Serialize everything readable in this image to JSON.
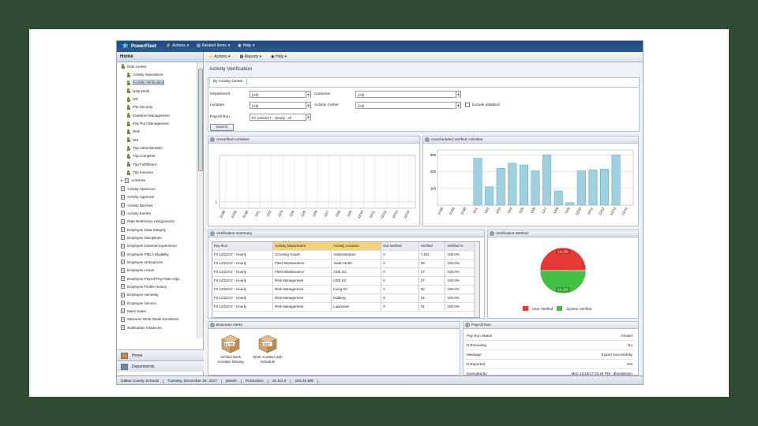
{
  "app": {
    "logo": "PowerFleet",
    "menu": [
      "Actions",
      "Related Items",
      "Help"
    ]
  },
  "sidebar": {
    "title": "Home",
    "items": [
      {
        "label": "Role Center",
        "icon": "person-icon",
        "indent": 0
      },
      {
        "label": "Activity Operations",
        "icon": "person-icon",
        "indent": 1
      },
      {
        "label": "Activity Verification",
        "icon": "person-icon",
        "indent": 1,
        "selected": true
      },
      {
        "label": "Help Desk",
        "icon": "person-icon",
        "indent": 1
      },
      {
        "label": "HR",
        "icon": "person-icon",
        "indent": 1
      },
      {
        "label": "PW Security",
        "icon": "person-icon",
        "indent": 1
      },
      {
        "label": "Overtime Management",
        "icon": "person-icon",
        "indent": 1
      },
      {
        "label": "Pay Run Management",
        "icon": "person-icon",
        "indent": 1
      },
      {
        "label": "Risk",
        "icon": "person-icon",
        "indent": 1
      },
      {
        "label": "SIS",
        "icon": "person-icon",
        "indent": 1
      },
      {
        "label": "Trip Administration",
        "icon": "person-icon",
        "indent": 1
      },
      {
        "label": "Trip Complete",
        "icon": "person-icon",
        "indent": 1
      },
      {
        "label": "Trip Fulfillment",
        "icon": "person-icon",
        "indent": 1
      },
      {
        "label": "Trip Invoices",
        "icon": "person-icon",
        "indent": 1
      },
      {
        "label": "Activities",
        "icon": "doc-icon",
        "indent": 0
      },
      {
        "label": "Activity Absences",
        "icon": "doc-icon",
        "indent": 0
      },
      {
        "label": "Activity Approval",
        "icon": "doc-icon",
        "indent": 0
      },
      {
        "label": "Activity Batches",
        "icon": "doc-icon",
        "indent": 0
      },
      {
        "label": "Activity Events",
        "icon": "doc-icon",
        "indent": 0
      },
      {
        "label": "Date Restriction Assignments",
        "icon": "doc-icon",
        "indent": 0
      },
      {
        "label": "Employee Data Integrity",
        "icon": "doc-icon",
        "indent": 0
      },
      {
        "label": "Employee Disciplines",
        "icon": "doc-icon",
        "indent": 0
      },
      {
        "label": "Employee External Experience",
        "icon": "doc-icon",
        "indent": 0
      },
      {
        "label": "Employee FMLA Eligibility",
        "icon": "doc-icon",
        "indent": 0
      },
      {
        "label": "Employee Grievances",
        "icon": "doc-icon",
        "indent": 0
      },
      {
        "label": "Employee Leave",
        "icon": "doc-icon",
        "indent": 0
      },
      {
        "label": "Employee Payroll Pay Rate Adju",
        "icon": "doc-icon",
        "indent": 0
      },
      {
        "label": "Employee Profile History",
        "icon": "doc-icon",
        "indent": 0
      },
      {
        "label": "Employee Seniority",
        "icon": "doc-icon",
        "indent": 0
      },
      {
        "label": "Employee Service",
        "icon": "doc-icon",
        "indent": 0
      },
      {
        "label": "Mass Sales",
        "icon": "doc-icon",
        "indent": 0
      },
      {
        "label": "Minimum Work Week Enrollmen",
        "icon": "doc-icon",
        "indent": 0
      },
      {
        "label": "Notification Instances",
        "icon": "doc-icon",
        "indent": 0
      }
    ],
    "buttons": [
      "Home",
      "Departments"
    ]
  },
  "toolbar": [
    "Actions",
    "Reports",
    "Help"
  ],
  "page_title": "Activity Verification",
  "filters": {
    "tab": "By Activity Center",
    "department_label": "Department",
    "department_value": "(All)",
    "customer_label": "Customer",
    "customer_value": "(All)",
    "location_label": "Location",
    "location_value": "(All)",
    "activity_center_label": "Activity Center",
    "activity_center_value": "(All)",
    "include_disabled": "Include disabled",
    "payroll_run_label": "Payroll Run",
    "payroll_run_value": "Fri 12/22/17 - Hourly - Cl",
    "search_button": "Search"
  },
  "unverified": {
    "title": "Unverified Activities",
    "y_tick": "1",
    "x_ticks": [
      "11/28",
      "11/29",
      "11/30",
      "12/1",
      "12/2",
      "12/3",
      "12/4",
      "12/5",
      "12/6",
      "12/7",
      "12/8",
      "12/9",
      "12/10",
      "12/11",
      "12/12",
      "12/13",
      "12/14"
    ]
  },
  "scheduled": {
    "title": "Unscheduled Verified Activities"
  },
  "chart_data": [
    {
      "type": "bar",
      "title": "Unscheduled Verified Activities",
      "categories": [
        "11/28",
        "11/29",
        "11/30",
        "12/1",
        "12/2",
        "12/3",
        "12/4",
        "12/5",
        "12/6",
        "12/7",
        "12/8",
        "12/9",
        "12/10",
        "12/11",
        "12/12",
        "12/13",
        "12/14"
      ],
      "values": [
        0,
        0,
        0,
        280,
        110,
        220,
        250,
        240,
        205,
        300,
        85,
        15,
        205,
        210,
        215,
        300,
        0
      ],
      "yticks": [
        100,
        200,
        300
      ],
      "ylim": [
        0,
        330
      ]
    },
    {
      "type": "pie",
      "title": "Verification Method",
      "categories": [
        "User Verified",
        "System Verified"
      ],
      "values": [
        24235,
        24195
      ],
      "colors": [
        "#e53935",
        "#43c043"
      ],
      "labels": [
        "24,235",
        "24,195"
      ]
    }
  ],
  "summary": {
    "title": "Verification Summary",
    "columns": [
      "Pay Run",
      "Activity Department",
      "Activity Location",
      "Not Verified",
      "Verified",
      "Verified %"
    ],
    "rows": [
      [
        "Fri 12/22/17 - Hourly",
        "Crossing Guard",
        "Administration",
        "0",
        "7,201",
        "100.0%"
      ],
      [
        "Fri 12/22/17 - Hourly",
        "Fleet Maintenance",
        "Alado North",
        "0",
        "29",
        "100.0%"
      ],
      [
        "Fri 12/22/17 - Hourly",
        "Fleet Maintenance",
        "CEB SC",
        "0",
        "17",
        "100.0%"
      ],
      [
        "Fri 12/22/17 - Hourly",
        "Risk Management",
        "CEB SC",
        "0",
        "27",
        "100.0%"
      ],
      [
        "Fri 12/22/17 - Hourly",
        "Risk Management",
        "Irving SC",
        "0",
        "30",
        "100.0%"
      ],
      [
        "Fri 12/22/17 - Hourly",
        "Risk Management",
        "Kidberg",
        "0",
        "31",
        "100.0%"
      ],
      [
        "Fri 12/22/17 - Hourly",
        "Risk Management",
        "Lawnview",
        "0",
        "31",
        "100.0%"
      ]
    ]
  },
  "method": {
    "title": "Verification Method",
    "user_label": "User Verified",
    "system_label": "System Verified"
  },
  "alerts": {
    "title": "Business Alerts",
    "items": [
      {
        "count": "14,701",
        "label": "Verified Work Activities Missing"
      },
      {
        "count": "5,027",
        "label": "Work Activities with Schedule"
      }
    ]
  },
  "payroll": {
    "title": "Payroll Run",
    "rows": [
      [
        "Pay Run Status",
        "Closed"
      ],
      [
        "Is Executing",
        "No"
      ],
      [
        "Message",
        "Export successfully"
      ],
      [
        "Is Exported",
        "Yes"
      ],
      [
        "Executed By",
        "Mon 12/18/17 02:26 PM - dhenderson"
      ]
    ]
  },
  "statusbar": [
    "Dallas County Schools",
    "Tuesday, December 19, 2017",
    "jsteele",
    "Production",
    "v8.111.0",
    "104.25 MB"
  ]
}
